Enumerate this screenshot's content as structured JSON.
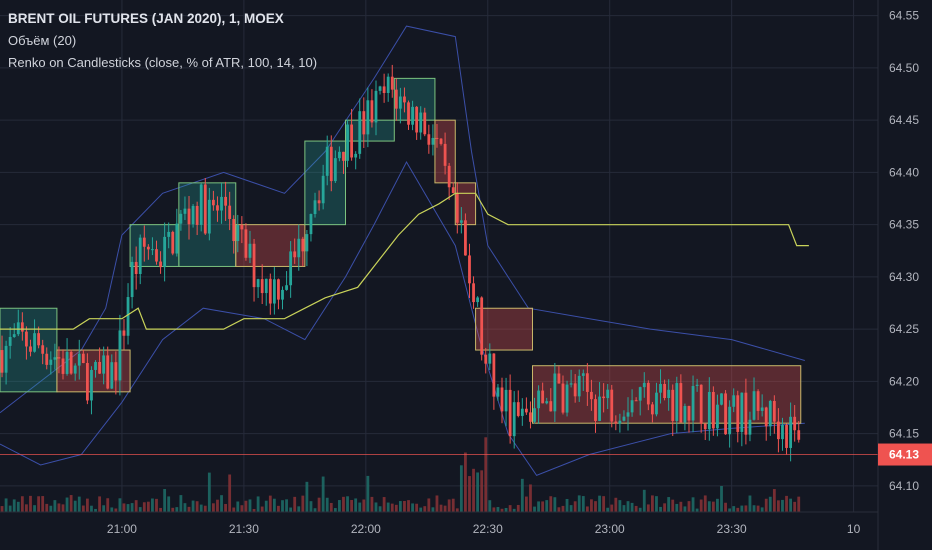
{
  "legend": {
    "title": "BRENT OIL FUTURES (JAN 2020), 1, MOEX",
    "volume": "Объём (20)",
    "renko": "Renko on Candlesticks (close, % of ATR, 100, 14, 10)"
  },
  "colors": {
    "background": "#131722",
    "grid": "#262b3a",
    "up": "#26a69a",
    "down": "#ef5350",
    "band": "#3b4fa8",
    "signal": "#c9d35a",
    "renko_up_fill": "rgba(38,166,154,0.28)",
    "renko_down_fill": "rgba(239,83,80,0.32)",
    "current_price": "#ef5350"
  },
  "chart_data": {
    "type": "candlestick",
    "y_axis": {
      "range": [
        64.075,
        64.565
      ],
      "ticks": [
        "64.10",
        "64.15",
        "64.20",
        "64.25",
        "64.30",
        "64.35",
        "64.40",
        "64.45",
        "64.50",
        "64.55"
      ]
    },
    "x_axis": {
      "range_minutes": [
        1230,
        1446
      ],
      "ticks": [
        {
          "t": 1260,
          "label": "21:00"
        },
        {
          "t": 1290,
          "label": "21:30"
        },
        {
          "t": 1320,
          "label": "22:00"
        },
        {
          "t": 1350,
          "label": "22:30"
        },
        {
          "t": 1380,
          "label": "23:00"
        },
        {
          "t": 1410,
          "label": "23:30"
        },
        {
          "t": 1440,
          "label": "10"
        }
      ]
    },
    "current_price": {
      "value": 64.13,
      "label": "64.13"
    },
    "renko_boxes": [
      {
        "t0": 1230,
        "t1": 1244,
        "lo": 64.19,
        "hi": 64.27,
        "dir": "up"
      },
      {
        "t0": 1244,
        "t1": 1262,
        "lo": 64.19,
        "hi": 64.23,
        "dir": "down"
      },
      {
        "t0": 1262,
        "t1": 1274,
        "lo": 64.31,
        "hi": 64.35,
        "dir": "up"
      },
      {
        "t0": 1274,
        "t1": 1288,
        "lo": 64.31,
        "hi": 64.39,
        "dir": "up"
      },
      {
        "t0": 1288,
        "t1": 1305,
        "lo": 64.31,
        "hi": 64.35,
        "dir": "down"
      },
      {
        "t0": 1305,
        "t1": 1315,
        "lo": 64.35,
        "hi": 64.43,
        "dir": "up"
      },
      {
        "t0": 1315,
        "t1": 1327,
        "lo": 64.43,
        "hi": 64.45,
        "dir": "up"
      },
      {
        "t0": 1327,
        "t1": 1337,
        "lo": 64.45,
        "hi": 64.49,
        "dir": "up"
      },
      {
        "t0": 1337,
        "t1": 1342,
        "lo": 64.39,
        "hi": 64.45,
        "dir": "down"
      },
      {
        "t0": 1342,
        "t1": 1347,
        "lo": 64.35,
        "hi": 64.39,
        "dir": "down"
      },
      {
        "t0": 1347,
        "t1": 1361,
        "lo": 64.23,
        "hi": 64.27,
        "dir": "down"
      },
      {
        "t0": 1361,
        "t1": 1427,
        "lo": 64.16,
        "hi": 64.215,
        "dir": "down"
      }
    ],
    "signal_line": [
      [
        1230,
        64.25
      ],
      [
        1248,
        64.25
      ],
      [
        1252,
        64.26
      ],
      [
        1260,
        64.26
      ],
      [
        1264,
        64.27
      ],
      [
        1266,
        64.25
      ],
      [
        1276,
        64.25
      ],
      [
        1285,
        64.25
      ],
      [
        1290,
        64.26
      ],
      [
        1300,
        64.26
      ],
      [
        1305,
        64.27
      ],
      [
        1310,
        64.28
      ],
      [
        1318,
        64.29
      ],
      [
        1322,
        64.31
      ],
      [
        1328,
        64.34
      ],
      [
        1333,
        64.36
      ],
      [
        1338,
        64.37
      ],
      [
        1342,
        64.38
      ],
      [
        1347,
        64.38
      ],
      [
        1350,
        64.36
      ],
      [
        1355,
        64.35
      ],
      [
        1370,
        64.35
      ],
      [
        1410,
        64.35
      ],
      [
        1424,
        64.35
      ],
      [
        1426,
        64.33
      ],
      [
        1429,
        64.33
      ]
    ],
    "band_upper": [
      [
        1230,
        64.17
      ],
      [
        1240,
        64.2
      ],
      [
        1250,
        64.23
      ],
      [
        1256,
        64.27
      ],
      [
        1260,
        64.34
      ],
      [
        1270,
        64.38
      ],
      [
        1285,
        64.4
      ],
      [
        1300,
        64.38
      ],
      [
        1310,
        64.42
      ],
      [
        1322,
        64.49
      ],
      [
        1330,
        64.54
      ],
      [
        1342,
        64.53
      ],
      [
        1346,
        64.42
      ],
      [
        1350,
        64.33
      ],
      [
        1360,
        64.27
      ],
      [
        1375,
        64.26
      ],
      [
        1390,
        64.25
      ],
      [
        1410,
        64.24
      ],
      [
        1428,
        64.22
      ]
    ],
    "band_lower": [
      [
        1230,
        64.14
      ],
      [
        1240,
        64.12
      ],
      [
        1250,
        64.13
      ],
      [
        1260,
        64.18
      ],
      [
        1270,
        64.24
      ],
      [
        1280,
        64.27
      ],
      [
        1295,
        64.26
      ],
      [
        1305,
        64.24
      ],
      [
        1315,
        64.3
      ],
      [
        1322,
        64.35
      ],
      [
        1330,
        64.41
      ],
      [
        1342,
        64.33
      ],
      [
        1348,
        64.24
      ],
      [
        1355,
        64.15
      ],
      [
        1362,
        64.11
      ],
      [
        1375,
        64.13
      ],
      [
        1395,
        64.15
      ],
      [
        1410,
        64.155
      ],
      [
        1428,
        64.16
      ]
    ],
    "close_path": [
      [
        1230,
        64.23
      ],
      [
        1236,
        64.24
      ],
      [
        1242,
        64.23
      ],
      [
        1248,
        64.21
      ],
      [
        1254,
        64.2
      ],
      [
        1258,
        64.21
      ],
      [
        1260,
        64.24
      ],
      [
        1262,
        64.3
      ],
      [
        1266,
        64.33
      ],
      [
        1270,
        64.32
      ],
      [
        1274,
        64.35
      ],
      [
        1278,
        64.37
      ],
      [
        1282,
        64.36
      ],
      [
        1286,
        64.37
      ],
      [
        1288,
        64.34
      ],
      [
        1292,
        64.31
      ],
      [
        1296,
        64.29
      ],
      [
        1300,
        64.3
      ],
      [
        1304,
        64.33
      ],
      [
        1306,
        64.37
      ],
      [
        1310,
        64.4
      ],
      [
        1314,
        64.43
      ],
      [
        1318,
        64.44
      ],
      [
        1322,
        64.46
      ],
      [
        1326,
        64.48
      ],
      [
        1330,
        64.46
      ],
      [
        1334,
        64.45
      ],
      [
        1337,
        64.43
      ],
      [
        1340,
        64.38
      ],
      [
        1343,
        64.34
      ],
      [
        1345,
        64.31
      ],
      [
        1347,
        64.28
      ],
      [
        1349,
        64.22
      ],
      [
        1352,
        64.19
      ],
      [
        1355,
        64.17
      ],
      [
        1358,
        64.16
      ],
      [
        1361,
        64.17
      ],
      [
        1366,
        64.19
      ],
      [
        1372,
        64.19
      ],
      [
        1380,
        64.18
      ],
      [
        1390,
        64.19
      ],
      [
        1400,
        64.18
      ],
      [
        1410,
        64.17
      ],
      [
        1418,
        64.17
      ],
      [
        1422,
        64.16
      ],
      [
        1425,
        64.15
      ],
      [
        1427,
        64.13
      ]
    ]
  }
}
